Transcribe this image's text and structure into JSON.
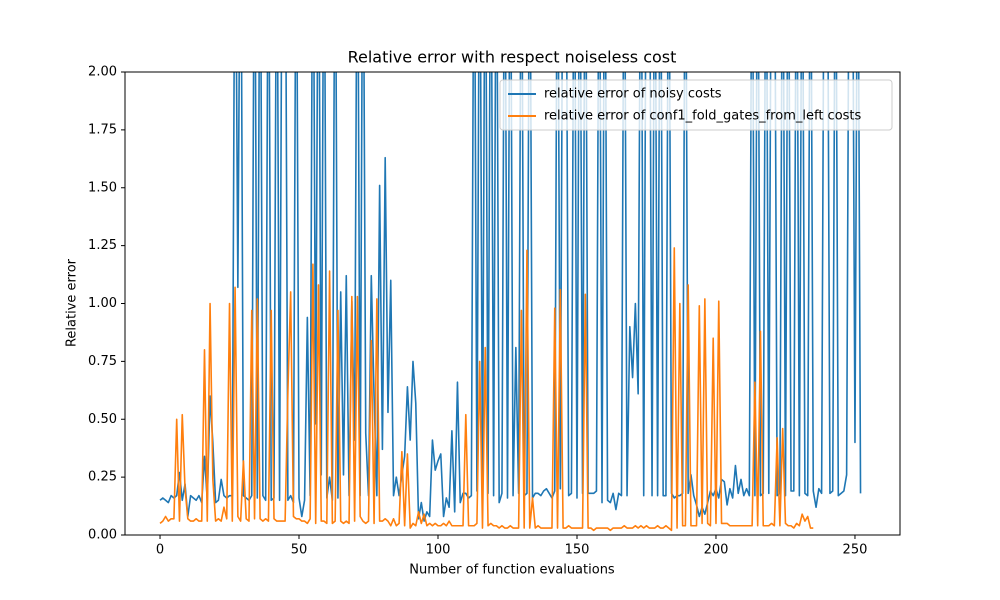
{
  "chart_data": {
    "type": "line",
    "title": "Relative error with respect noiseless cost",
    "x_label": "Number of function evaluations",
    "y_label": "Relative error",
    "xlim": [
      -12.6,
      266.2
    ],
    "ylim": [
      0,
      2
    ],
    "xticks": [
      0,
      50,
      100,
      150,
      200,
      250
    ],
    "yticks": [
      {
        "value": 0,
        "label": "0.00"
      },
      {
        "value": 0.25,
        "label": "0.25"
      },
      {
        "value": 0.5,
        "label": "0.50"
      },
      {
        "value": 0.75,
        "label": "0.75"
      },
      {
        "value": 1,
        "label": "1.00"
      },
      {
        "value": 1.25,
        "label": "1.25"
      },
      {
        "value": 1.5,
        "label": "1.50"
      },
      {
        "value": 1.75,
        "label": "1.75"
      },
      {
        "value": 2,
        "label": "2.00"
      }
    ],
    "legend": "upper right",
    "series": [
      {
        "name": "relative error of noisy costs",
        "color": "#1f77b4",
        "values": [
          0.15,
          0.16,
          0.15,
          0.14,
          0.17,
          0.16,
          0.17,
          0.27,
          0.15,
          0.22,
          0.08,
          0.17,
          0.16,
          0.15,
          0.17,
          0.14,
          0.34,
          0.15,
          0.6,
          0.4,
          0.14,
          0.15,
          0.24,
          0.17,
          0.16,
          0.17,
          0.17,
          3.0,
          1.07,
          3.0,
          0.17,
          0.16,
          0.15,
          0.17,
          3.0,
          0.16,
          3.0,
          0.17,
          0.15,
          3.0,
          0.15,
          0.16,
          3.0,
          0.15,
          3.0,
          3.0,
          0.15,
          0.17,
          0.14,
          3.0,
          0.16,
          0.08,
          0.15,
          0.94,
          0.17,
          3.0,
          0.48,
          3.0,
          0.26,
          3.0,
          0.16,
          0.25,
          0.15,
          3.0,
          0.16,
          1.05,
          0.26,
          1.12,
          0.17,
          1.01,
          0.41,
          3.0,
          0.17,
          3.0,
          0.44,
          0.17,
          1.12,
          0.6,
          0.17,
          1.51,
          0.37,
          1.63,
          0.53,
          1.1,
          0.17,
          0.25,
          0.17,
          0.26,
          0.34,
          0.64,
          0.41,
          0.75,
          0.57,
          0.07,
          0.14,
          0.06,
          0.1,
          0.08,
          0.41,
          0.28,
          0.32,
          0.35,
          0.08,
          0.16,
          0.12,
          0.45,
          0.1,
          0.66,
          0.14,
          0.18,
          0.18,
          0.16,
          0.17,
          3.0,
          0.19,
          3.0,
          0.18,
          3.0,
          0.18,
          3.0,
          0.17,
          3.0,
          0.14,
          0.18,
          3.0,
          0.16,
          3.0,
          0.17,
          0.81,
          0.18,
          3.0,
          0.17,
          0.18,
          3.0,
          0.16,
          0.18,
          0.18,
          0.17,
          0.19,
          0.2,
          0.18,
          0.16,
          0.19,
          3.0,
          0.2,
          3.0,
          3.0,
          0.17,
          0.18,
          3.0,
          0.16,
          3.0,
          0.18,
          3.0,
          0.18,
          0.18,
          0.18,
          0.19,
          3.0,
          0.14,
          3.0,
          0.15,
          0.14,
          0.18,
          0.11,
          0.18,
          0.17,
          3.0,
          0.17,
          0.9,
          0.68,
          1.0,
          0.61,
          3.0,
          0.17,
          3.0,
          3.0,
          0.17,
          3.0,
          0.17,
          3.0,
          0.17,
          0.17,
          3.0,
          0.18,
          0.16,
          0.17,
          0.17,
          0.18,
          3.0,
          0.18,
          0.26,
          0.17,
          0.13,
          0.08,
          0.12,
          0.09,
          0.14,
          0.19,
          0.17,
          0.2,
          0.16,
          0.24,
          0.23,
          0.13,
          0.2,
          0.16,
          0.3,
          0.18,
          0.24,
          0.17,
          0.2,
          0.17,
          3.0,
          0.17,
          3.0,
          0.17,
          0.18,
          3.0,
          0.18,
          3.0,
          3.0,
          0.17,
          0.18,
          3.0,
          0.17,
          3.0,
          0.19,
          0.19,
          3.0,
          0.17,
          3.0,
          0.18,
          0.17,
          3.0,
          0.19,
          0.12,
          0.2,
          0.18,
          3.0,
          3.0,
          0.18,
          0.19,
          3.0,
          0.17,
          0.18,
          0.19,
          0.26,
          3.0,
          3.0,
          0.4,
          3.0,
          0.18
        ]
      },
      {
        "name": "relative error of conf1_fold_gates_from_left costs",
        "color": "#ff7f0e",
        "values": [
          0.05,
          0.06,
          0.08,
          0.06,
          0.07,
          0.07,
          0.5,
          0.06,
          0.52,
          0.2,
          0.07,
          0.06,
          0.06,
          0.07,
          0.06,
          0.06,
          0.8,
          0.06,
          1.0,
          0.24,
          0.06,
          0.07,
          0.06,
          0.12,
          0.07,
          1.0,
          0.06,
          1.07,
          0.08,
          0.06,
          0.32,
          0.07,
          0.06,
          0.97,
          0.07,
          1.02,
          0.07,
          0.06,
          0.07,
          0.06,
          0.97,
          0.07,
          0.06,
          0.06,
          0.06,
          0.06,
          0.62,
          1.05,
          0.08,
          0.07,
          0.07,
          0.06,
          0.06,
          0.05,
          0.07,
          1.17,
          0.05,
          1.08,
          0.06,
          0.06,
          0.05,
          1.14,
          0.05,
          0.06,
          0.97,
          0.06,
          0.05,
          0.06,
          0.05,
          1.03,
          0.06,
          1.03,
          0.08,
          0.06,
          0.05,
          0.06,
          0.84,
          0.05,
          1.02,
          0.06,
          0.06,
          0.07,
          0.06,
          0.04,
          0.07,
          0.04,
          0.05,
          0.36,
          0.04,
          0.35,
          0.03,
          0.05,
          0.04,
          0.1,
          0.05,
          0.09,
          0.04,
          0.05,
          0.04,
          0.05,
          0.04,
          0.04,
          0.05,
          0.04,
          0.06,
          0.04,
          0.04,
          0.04,
          0.04,
          0.04,
          0.52,
          0.04,
          0.04,
          0.04,
          0.05,
          0.75,
          0.03,
          0.81,
          0.04,
          0.05,
          0.04,
          0.04,
          0.03,
          0.04,
          0.03,
          0.03,
          0.04,
          0.03,
          0.03,
          0.03,
          0.97,
          0.03,
          1.23,
          0.03,
          0.16,
          0.03,
          0.04,
          0.03,
          0.03,
          0.03,
          0.03,
          0.03,
          0.98,
          0.03,
          1.06,
          0.03,
          0.03,
          0.04,
          0.03,
          0.03,
          0.03,
          0.03,
          0.03,
          1.04,
          0.03,
          0.03,
          0.02,
          0.03,
          0.03,
          0.03,
          0.03,
          0.03,
          0.02,
          0.03,
          0.03,
          0.03,
          0.03,
          0.04,
          0.03,
          0.03,
          0.03,
          0.04,
          0.03,
          0.04,
          0.03,
          0.04,
          0.03,
          0.03,
          0.03,
          0.04,
          0.03,
          0.03,
          0.04,
          0.03,
          0.02,
          1.24,
          0.03,
          1.0,
          0.04,
          0.04,
          1.08,
          0.04,
          0.04,
          0.04,
          0.99,
          0.05,
          1.02,
          0.05,
          0.04,
          0.85,
          0.05,
          1.01,
          0.05,
          0.05,
          0.05,
          0.04,
          0.04,
          0.04,
          0.04,
          0.04,
          0.04,
          0.04,
          0.04,
          0.04,
          0.66,
          0.04,
          0.88,
          0.04,
          0.04,
          0.04,
          0.05,
          0.04,
          0.42,
          0.04,
          0.46,
          0.05,
          0.04,
          0.04,
          0.03,
          0.05,
          0.04,
          0.09,
          0.06,
          0.08,
          0.03,
          0.03
        ]
      }
    ]
  }
}
